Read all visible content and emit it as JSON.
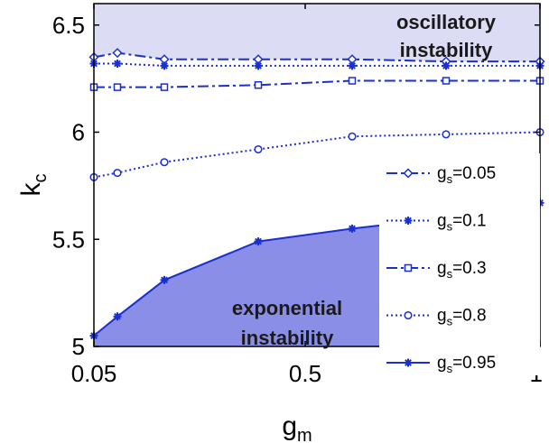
{
  "chart_data": {
    "type": "line",
    "xlabel": "g",
    "xlabel_sub": "m",
    "ylabel": "k",
    "ylabel_sub": "c",
    "x_tick_labels": [
      "0.05",
      "0.5",
      "1"
    ],
    "y_tick_labels": [
      "5",
      "5.5",
      "6",
      "6.5"
    ],
    "x": [
      0.05,
      0.1,
      0.2,
      0.4,
      0.6,
      0.8,
      1.0
    ],
    "xlim": [
      0.05,
      1.0
    ],
    "ylim": [
      5.0,
      6.6
    ],
    "grid": false,
    "legend_position": "right",
    "regions": [
      {
        "label_lines": [
          "oscillatory",
          "instability"
        ],
        "fill": "#dcdcf5",
        "position": "above top series"
      },
      {
        "label_lines": [
          "exponential",
          "instability"
        ],
        "fill": "#8a8ee6",
        "position": "below g_s=0.95 curve"
      }
    ],
    "series": [
      {
        "name": "g",
        "name_sub": "s",
        "name_suffix": "=0.05",
        "marker": "diamond",
        "dash": "dashdot",
        "color": "#1a2fd0",
        "values": [
          6.35,
          6.37,
          6.34,
          6.34,
          6.34,
          6.33,
          6.33
        ]
      },
      {
        "name": "g",
        "name_sub": "s",
        "name_suffix": "=0.1",
        "marker": "asterisk",
        "dash": "dotted",
        "color": "#1a2fd0",
        "values": [
          6.32,
          6.32,
          6.31,
          6.31,
          6.31,
          6.31,
          6.31
        ]
      },
      {
        "name": "g",
        "name_sub": "s",
        "name_suffix": "=0.3",
        "marker": "square",
        "dash": "dashdot",
        "color": "#1a2fd0",
        "values": [
          6.21,
          6.21,
          6.21,
          6.22,
          6.24,
          6.24,
          6.24
        ]
      },
      {
        "name": "g",
        "name_sub": "s",
        "name_suffix": "=0.8",
        "marker": "circle",
        "dash": "dotted",
        "color": "#1a2fd0",
        "values": [
          5.79,
          5.81,
          5.86,
          5.92,
          5.98,
          5.99,
          6.0
        ]
      },
      {
        "name": "g",
        "name_sub": "s",
        "name_suffix": "=0.95",
        "marker": "asterisk",
        "dash": "solid",
        "color": "#1a2fd0",
        "values": [
          5.05,
          5.14,
          5.31,
          5.49,
          5.55,
          5.6,
          5.67
        ]
      }
    ]
  }
}
